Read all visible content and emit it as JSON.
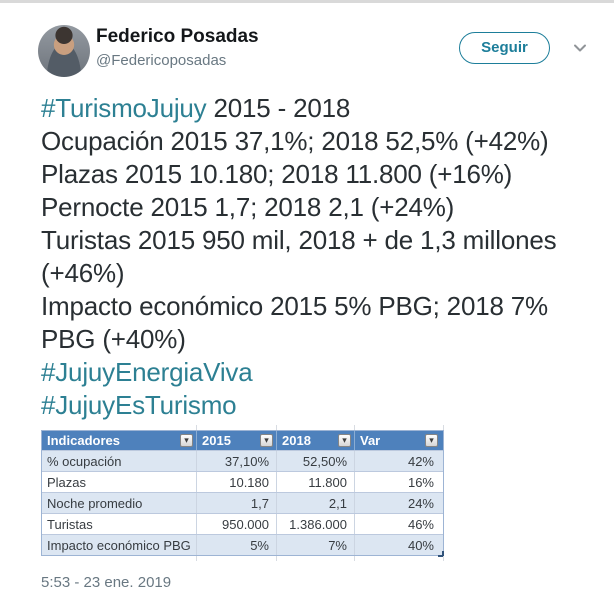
{
  "colors": {
    "accent_teal": "#2d8093",
    "follow_teal": "#1d7e9a",
    "text_dark": "#292f33",
    "text_gray": "#697882",
    "table_header_bg": "#4e81bc",
    "table_band_bg": "#dce6f2"
  },
  "header": {
    "display_name": "Federico Posadas",
    "handle": "@Federicoposadas",
    "follow_button_label": "Seguir",
    "caret_icon": "chevron-down"
  },
  "tweet": {
    "lines": [
      {
        "parts": [
          {
            "text": "#TurismoJujuy",
            "type": "hashtag"
          },
          {
            "text": " 2015 - 2018",
            "type": "text"
          }
        ]
      },
      {
        "parts": [
          {
            "text": "Ocupación 2015 37,1%; 2018 52,5% (+42%)",
            "type": "text"
          }
        ]
      },
      {
        "parts": [
          {
            "text": "Plazas 2015 10.180; 2018 11.800 (+16%)",
            "type": "text"
          }
        ]
      },
      {
        "parts": [
          {
            "text": "Pernocte 2015 1,7; 2018 2,1 (+24%)",
            "type": "text"
          }
        ]
      },
      {
        "parts": [
          {
            "text": "Turistas 2015 950 mil, 2018 + de 1,3 millones",
            "type": "text"
          }
        ]
      },
      {
        "parts": [
          {
            "text": "(+46%)",
            "type": "text"
          }
        ]
      },
      {
        "parts": [
          {
            "text": "Impacto económico 2015 5% PBG; 2018 7%",
            "type": "text"
          }
        ]
      },
      {
        "parts": [
          {
            "text": "PBG (+40%)",
            "type": "text"
          }
        ]
      },
      {
        "parts": [
          {
            "text": "#JujuyEnergiaViva",
            "type": "hashtag"
          }
        ]
      },
      {
        "parts": [
          {
            "text": "#JujuyEsTurismo",
            "type": "hashtag"
          }
        ]
      }
    ]
  },
  "table": {
    "filter_icon": "▾",
    "headers": [
      "Indicadores",
      "2015",
      "2018",
      "Var"
    ],
    "rows": [
      [
        "% ocupación",
        "37,10%",
        "52,50%",
        "42%"
      ],
      [
        "Plazas",
        "10.180",
        "11.800",
        "16%"
      ],
      [
        "Noche promedio",
        "1,7",
        "2,1",
        "24%"
      ],
      [
        "Turistas",
        "950.000",
        "1.386.000",
        "46%"
      ],
      [
        "Impacto económico PBG",
        "5%",
        "7%",
        "40%"
      ]
    ]
  },
  "footer": {
    "timestamp": "5:53 - 23 ene. 2019"
  }
}
